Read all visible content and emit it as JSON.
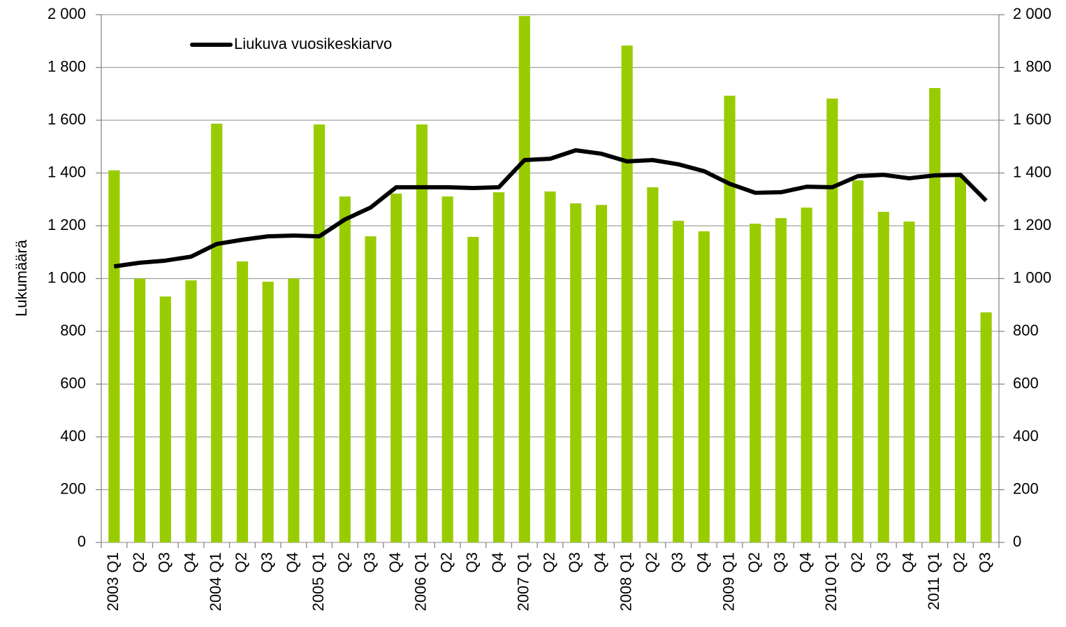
{
  "chart_data": {
    "type": "bar",
    "y_label": "Lukumäärä",
    "categories": [
      "2003 Q1",
      "Q2",
      "Q3",
      "Q4",
      "2004 Q1",
      "Q2",
      "Q3",
      "Q4",
      "2005 Q1",
      "Q2",
      "Q3",
      "Q4",
      "2006 Q1",
      "Q2",
      "Q3",
      "Q4",
      "2007 Q1",
      "Q2",
      "Q3",
      "Q4",
      "2008 Q1",
      "Q2",
      "Q3",
      "Q4",
      "2009 Q1",
      "Q2",
      "Q3",
      "Q4",
      "2010 Q1",
      "Q2",
      "Q3",
      "Q4",
      "2011 Q1",
      "Q2",
      "Q3"
    ],
    "series": [
      {
        "type": "bar",
        "color": "#99cc00",
        "values": [
          1410,
          1000,
          932,
          993,
          1587,
          1065,
          988,
          1000,
          1584,
          1311,
          1160,
          1322,
          1584,
          1311,
          1158,
          1327,
          1995,
          1330,
          1285,
          1279,
          1883,
          1346,
          1219,
          1179,
          1693,
          1208,
          1229,
          1269,
          1682,
          1372,
          1253,
          1216,
          1722,
          1385,
          872
        ]
      },
      {
        "type": "line",
        "name": "Liukuva vuosikeskiarvo",
        "color": "#000000",
        "axis": "y2",
        "values": [
          1046,
          1060,
          1068,
          1083,
          1131,
          1147,
          1160,
          1163,
          1160,
          1224,
          1269,
          1346,
          1346,
          1346,
          1343,
          1346,
          1449,
          1454,
          1486,
          1473,
          1444,
          1449,
          1433,
          1407,
          1359,
          1325,
          1327,
          1348,
          1346,
          1388,
          1393,
          1380,
          1391,
          1393,
          1295
        ]
      }
    ],
    "ylim": [
      0,
      2000
    ],
    "yticks": [
      0,
      200,
      400,
      600,
      800,
      {
        "value": 1000,
        "label": "1 000"
      },
      {
        "value": 1200,
        "label": "1 200"
      },
      {
        "value": 1400,
        "label": "1 400"
      },
      {
        "value": 1600,
        "label": "1 600"
      },
      {
        "value": 1800,
        "label": "1 800"
      },
      {
        "value": 2000,
        "label": "2 000"
      }
    ],
    "y2lim": [
      0,
      2000
    ],
    "y2ticks": [
      0,
      200,
      400,
      600,
      800,
      {
        "value": 1000,
        "label": "1 000"
      },
      {
        "value": 1200,
        "label": "1 200"
      },
      {
        "value": 1400,
        "label": "1 400"
      },
      {
        "value": 1600,
        "label": "1 600"
      },
      {
        "value": 1800,
        "label": "1 800"
      },
      {
        "value": 2000,
        "label": "2 000"
      }
    ],
    "grid": true,
    "legend": "top-left"
  }
}
